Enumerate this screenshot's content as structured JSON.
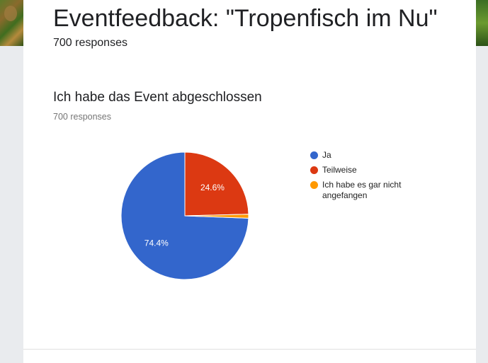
{
  "form": {
    "title": "Eventfeedback: \"Tropenfisch im Nu\"",
    "responses": "700 responses"
  },
  "question": {
    "title": "Ich habe das Event abgeschlossen",
    "responses": "700 responses"
  },
  "colors": {
    "ja": "#3366cc",
    "teilweise": "#dc3912",
    "nicht": "#ff9900"
  },
  "chart_data": {
    "type": "pie",
    "legend_position": "right",
    "slices": [
      {
        "label": "Ja",
        "value": 74.4,
        "display": "74.4%",
        "color": "#3366cc"
      },
      {
        "label": "Teilweise",
        "value": 24.6,
        "display": "24.6%",
        "color": "#dc3912"
      },
      {
        "label": "Ich habe es gar nicht angefangen",
        "value": 1.0,
        "display": "",
        "color": "#ff9900"
      }
    ]
  }
}
